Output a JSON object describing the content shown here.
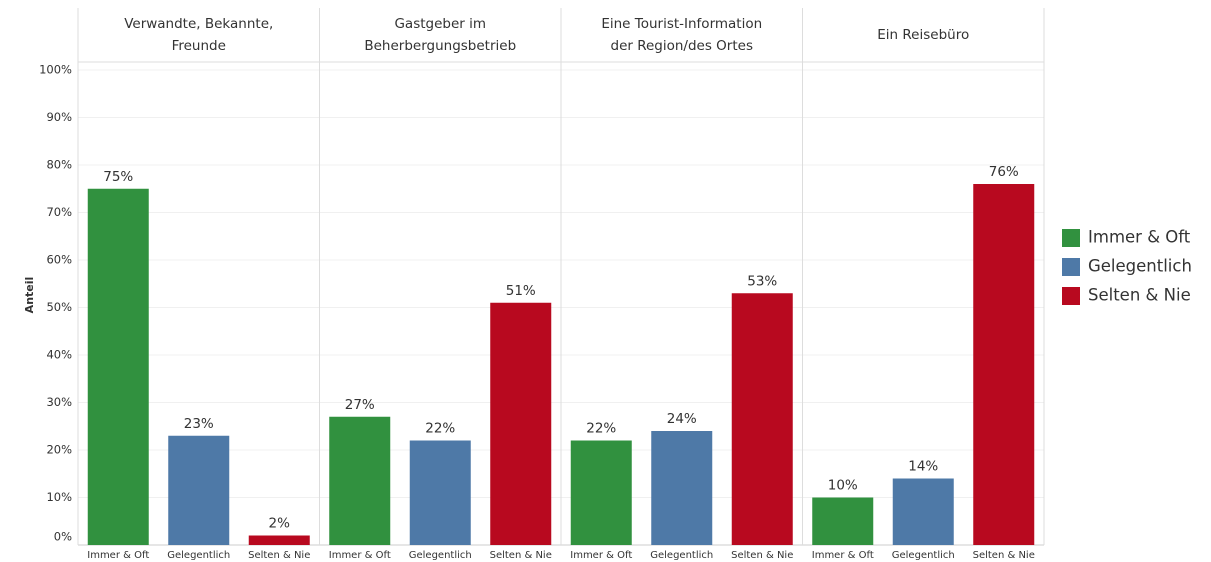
{
  "chart_data": {
    "type": "bar",
    "y_label": "Anteil",
    "facets": [
      "Verwandte, Bekannte, Freunde",
      "Gastgeber im Beherbergungsbetrieb",
      "Eine Tourist-Information der Region/des Ortes",
      "Ein Reisebüro"
    ],
    "series": [
      {
        "name": "Immer & Oft",
        "color": "#31913f",
        "values": [
          75,
          27,
          22,
          10
        ],
        "value_labels": [
          "75%",
          "27%",
          "22%",
          "10%"
        ]
      },
      {
        "name": "Gelegentlich",
        "color": "#4e79a7",
        "values": [
          23,
          22,
          24,
          14
        ],
        "value_labels": [
          "23%",
          "22%",
          "24%",
          "14%"
        ]
      },
      {
        "name": "Selten & Nie",
        "color": "#b8091f",
        "values": [
          2,
          51,
          53,
          76
        ],
        "value_labels": [
          "2%",
          "51%",
          "53%",
          "76%"
        ]
      }
    ],
    "ylim": [
      0,
      100
    ],
    "yticks": [
      {
        "value": 0,
        "label": "0%"
      },
      {
        "value": 10,
        "label": "10%"
      },
      {
        "value": 20,
        "label": "20%"
      },
      {
        "value": 30,
        "label": "30%"
      },
      {
        "value": 40,
        "label": "40%"
      },
      {
        "value": 50,
        "label": "50%"
      },
      {
        "value": 60,
        "label": "60%"
      },
      {
        "value": 70,
        "label": "70%"
      },
      {
        "value": 80,
        "label": "80%"
      },
      {
        "value": 90,
        "label": "90%"
      },
      {
        "value": 100,
        "label": "100%"
      }
    ],
    "grid": true,
    "legend": "right"
  }
}
